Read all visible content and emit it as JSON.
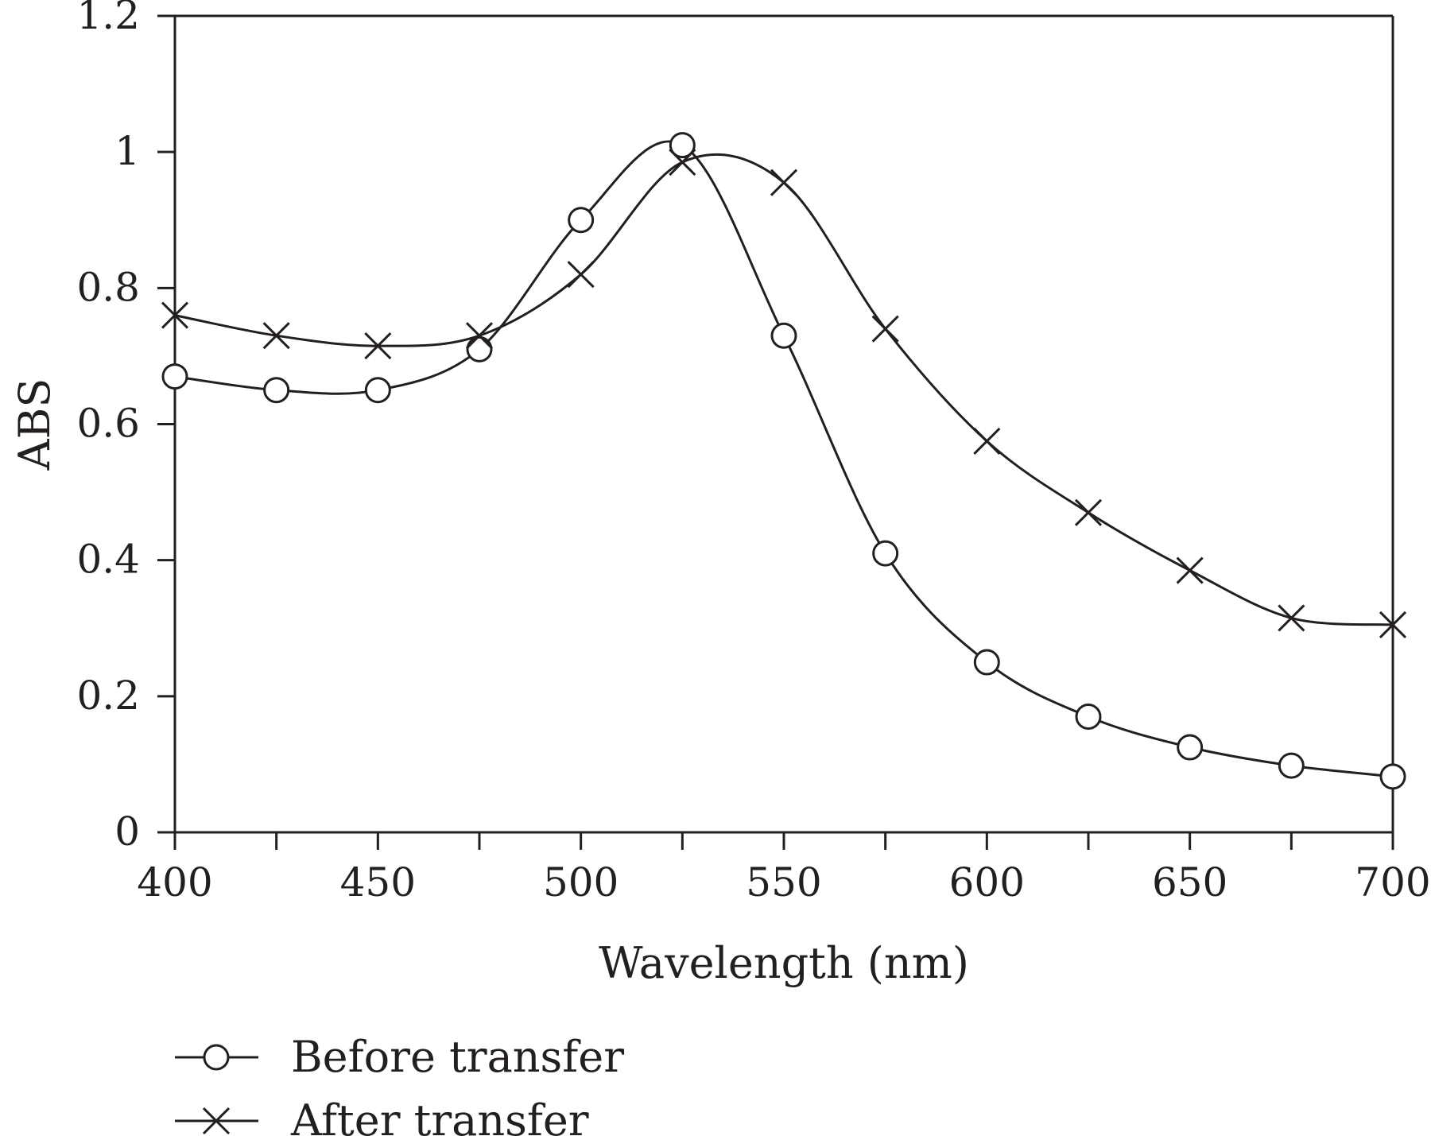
{
  "chart_data": {
    "type": "line",
    "title": "",
    "xlabel": "Wavelength (nm)",
    "ylabel": "ABS",
    "xlim": [
      400,
      700
    ],
    "ylim": [
      0,
      1.2
    ],
    "x_ticks": [
      400,
      450,
      500,
      550,
      600,
      650,
      700
    ],
    "x_minor_ticks": [
      425,
      475,
      525,
      575,
      625,
      675
    ],
    "y_ticks": [
      0,
      0.2,
      0.4,
      0.6,
      0.8,
      1.0,
      1.2
    ],
    "y_tick_labels": [
      "0",
      "0.2",
      "0.4",
      "0.6",
      "0.8",
      "1",
      "1.2"
    ],
    "x_tick_labels": [
      "400",
      "450",
      "500",
      "550",
      "600",
      "650",
      "700"
    ],
    "grid": false,
    "legend_position": "bottom-left",
    "x": [
      400,
      425,
      450,
      475,
      500,
      525,
      550,
      575,
      600,
      625,
      650,
      675,
      700
    ],
    "series": [
      {
        "name": "Before transfer",
        "marker": "circle",
        "values": [
          0.67,
          0.65,
          0.65,
          0.71,
          0.9,
          1.01,
          0.73,
          0.41,
          0.25,
          0.17,
          0.125,
          0.098,
          0.082
        ]
      },
      {
        "name": "After transfer",
        "marker": "cross",
        "values": [
          0.76,
          0.73,
          0.715,
          0.73,
          0.82,
          0.985,
          0.955,
          0.74,
          0.575,
          0.47,
          0.385,
          0.315,
          0.305
        ]
      }
    ]
  }
}
